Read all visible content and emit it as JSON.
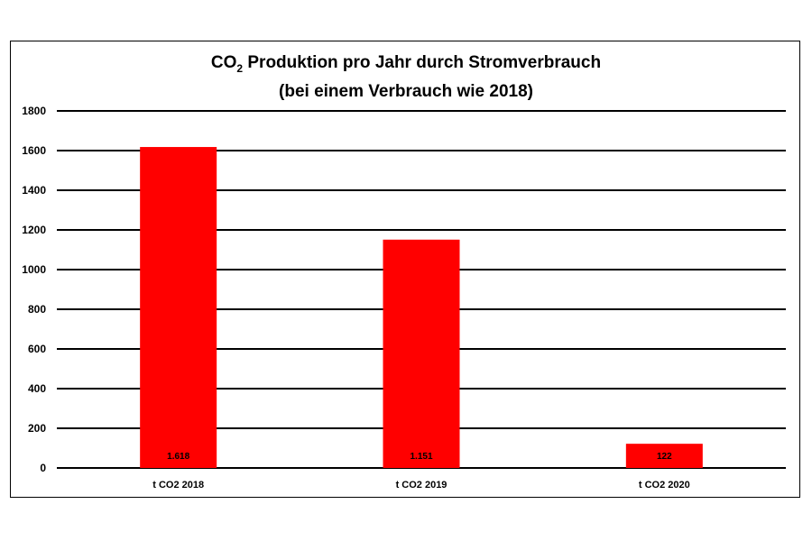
{
  "chart_data": {
    "type": "bar",
    "title_prefix": "CO",
    "title_sub": "2",
    "title_rest": " Produktion pro Jahr durch Stromverbrauch",
    "subtitle": "(bei einem Verbrauch wie 2018)",
    "xlabel": "",
    "ylabel": "",
    "categories": [
      "t CO2 2018",
      "t CO2 2019",
      "t CO2 2020"
    ],
    "values": [
      1618,
      1151,
      122
    ],
    "data_labels": [
      "1.618",
      "1.151",
      "122"
    ],
    "yticks": [
      0,
      200,
      400,
      600,
      800,
      1000,
      1200,
      1400,
      1600,
      1800
    ],
    "ylim": [
      0,
      1800
    ],
    "grid": true,
    "legend": "none",
    "bar_color": "#ff0000"
  }
}
